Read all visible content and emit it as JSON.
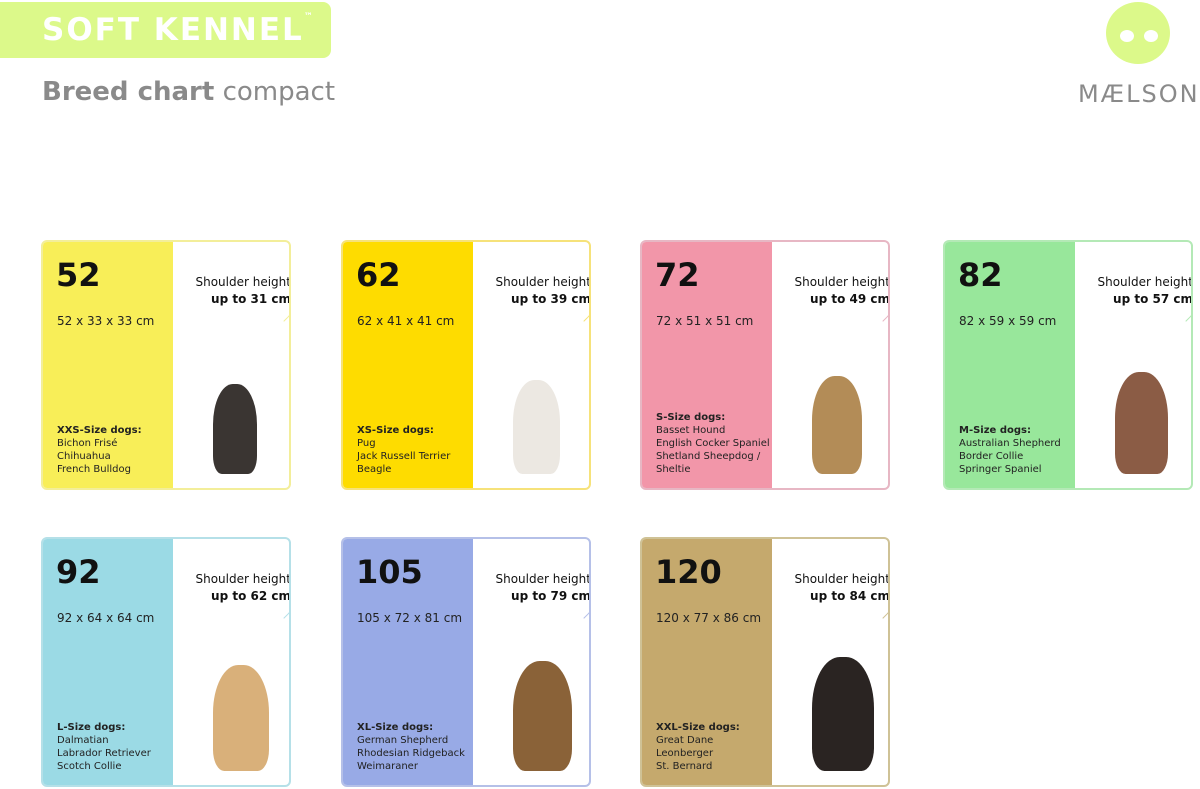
{
  "header": {
    "brand": "SOFT KENNEL",
    "trademark": "™",
    "subtitle_bold": "Breed chart",
    "subtitle_light": "compact",
    "logo_text": "MÆLSON",
    "logo_icon": "dog-head-logo-icon"
  },
  "shoulder_label": "Shoulder height",
  "cards": [
    {
      "size": "52",
      "dims": "52 x 33 x 33 cm",
      "shoulder": "up to 31 cm",
      "category": "XXS-Size dogs:",
      "breeds": [
        "Bichon Frisé",
        "Chihuahua",
        "French Bulldog"
      ],
      "color": "#f8ee58",
      "border": "#f3ee9a",
      "dog": "#3a3532"
    },
    {
      "size": "62",
      "dims": "62 x 41 x 41 cm",
      "shoulder": "up to 39 cm",
      "category": "XS-Size dogs:",
      "breeds": [
        "Pug",
        "Jack Russell Terrier",
        "Beagle"
      ],
      "color": "#fedc00",
      "border": "#f6e27a",
      "dog": "#ece8e2"
    },
    {
      "size": "72",
      "dims": "72 x 51 x 51 cm",
      "shoulder": "up to 49 cm",
      "category": "S-Size dogs:",
      "breeds": [
        "Basset Hound",
        "English Cocker Spaniel",
        "Shetland Sheepdog /",
        "Sheltie"
      ],
      "color": "#f296a9",
      "border": "#e7b7c4",
      "dog": "#b38c57"
    },
    {
      "size": "82",
      "dims": "82 x 59 x 59 cm",
      "shoulder": "up to 57 cm",
      "category": "M-Size dogs:",
      "breeds": [
        "Australian Shepherd",
        "Border Collie",
        "Springer Spaniel"
      ],
      "color": "#98e79b",
      "border": "#b4e9b6",
      "dog": "#8b5c45"
    },
    {
      "size": "92",
      "dims": "92 x 64 x 64 cm",
      "shoulder": "up to 62 cm",
      "category": "L-Size dogs:",
      "breeds": [
        "Dalmatian",
        "Labrador Retriever",
        "Scotch Collie"
      ],
      "color": "#9bdae5",
      "border": "#b5e0e8",
      "dog": "#d9b07a"
    },
    {
      "size": "105",
      "dims": "105 x 72 x 81 cm",
      "shoulder": "up to 79 cm",
      "category": "XL-Size dogs:",
      "breeds": [
        "German Shepherd",
        "Rhodesian Ridgeback",
        "Weimaraner"
      ],
      "color": "#98aae6",
      "border": "#b5c0e8",
      "dog": "#8a6238"
    },
    {
      "size": "120",
      "dims": "120 x 77 x 86 cm",
      "shoulder": "up to 84 cm",
      "category": "XXL-Size dogs:",
      "breeds": [
        "Great Dane",
        "Leonberger",
        "St. Bernard"
      ],
      "color": "#c5a96d",
      "border": "#cfc296",
      "dog": "#2a2422"
    }
  ]
}
